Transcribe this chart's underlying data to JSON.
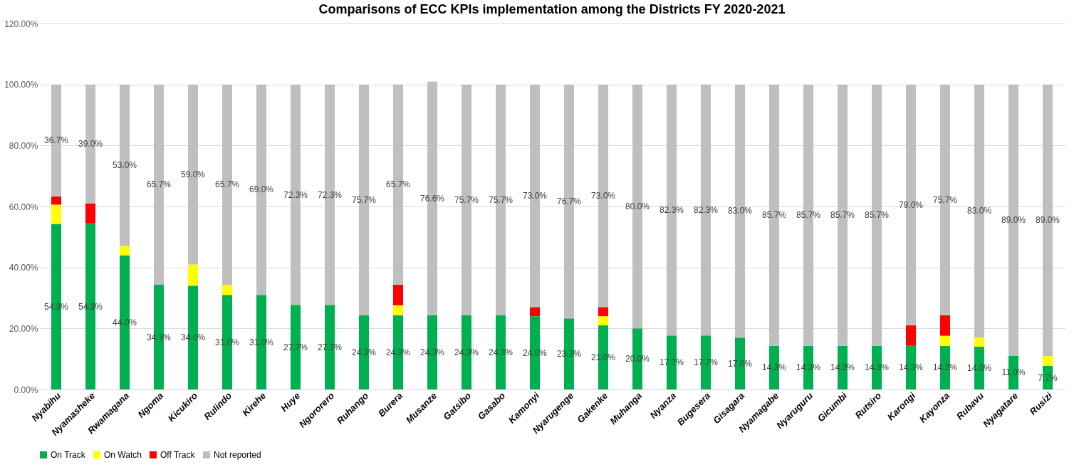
{
  "chart_data": {
    "type": "bar",
    "title": "Comparisons  of ECC KPIs implementation among the Districts FY 2020-2021",
    "categories": [
      "Nyabihu",
      "Nyamasheke",
      "Rwamagana",
      "Ngoma",
      "Kicukiro",
      "Rulindo",
      "Kirehe",
      "Huye",
      "Ngororero",
      "Ruhango",
      "Burera",
      "Musanze",
      "Gatsibo",
      "Gasabo",
      "Kamonyi",
      "Nyarugenge",
      "Gakenke",
      "Muhanga",
      "Nyanza",
      "Bugesera",
      "Gisagara",
      "Nyamagabe",
      "Nyaruguru",
      "Gicumbi",
      "Rutsiro",
      "Karongi",
      "Kayonza",
      "Rubavu",
      "Nyagatare",
      "Rusizi"
    ],
    "stacked": true,
    "series": [
      {
        "name": "On Track",
        "color": "#00b050",
        "values": [
          54.3,
          54.3,
          44.0,
          34.3,
          34.0,
          31.0,
          31.0,
          27.7,
          27.7,
          24.3,
          24.3,
          24.3,
          24.3,
          24.3,
          24.0,
          23.3,
          21.0,
          20.0,
          17.7,
          17.7,
          17.0,
          14.3,
          14.3,
          14.3,
          14.3,
          14.3,
          14.3,
          14.0,
          11.0,
          7.7
        ],
        "value_labels": [
          "54.3%",
          "54.3%",
          "44.0%",
          "34.3%",
          "34.0%",
          "31.0%",
          "31.0%",
          "27.7%",
          "27.7%",
          "24.3%",
          "24.3%",
          "24.3%",
          "24.3%",
          "24.3%",
          "24.0%",
          "23.3%",
          "21.0%",
          "20.0%",
          "17.7%",
          "17.7%",
          "17.0%",
          "14.3%",
          "14.3%",
          "14.3%",
          "14.3%",
          "14.3%",
          "14.3%",
          "14.0%",
          "11.0%",
          "7.7%"
        ]
      },
      {
        "name": "On Watch",
        "color": "#ffff00",
        "values": [
          6.3,
          null,
          3.0,
          null,
          7.0,
          3.3,
          null,
          null,
          null,
          null,
          3.3,
          null,
          null,
          null,
          null,
          null,
          3.0,
          null,
          null,
          null,
          null,
          null,
          null,
          null,
          null,
          null,
          3.3,
          3.0,
          null,
          3.3
        ]
      },
      {
        "name": "Off Track",
        "color": "#ff0000",
        "values": [
          2.7,
          6.7,
          null,
          null,
          null,
          null,
          null,
          null,
          null,
          null,
          6.7,
          null,
          null,
          null,
          3.0,
          null,
          3.0,
          null,
          null,
          null,
          null,
          null,
          null,
          null,
          null,
          6.7,
          6.7,
          null,
          null,
          null
        ]
      },
      {
        "name": "Not reported",
        "color": "#bfbfbf",
        "values": [
          36.7,
          39.0,
          53.0,
          65.7,
          59.0,
          65.7,
          69.0,
          72.3,
          72.3,
          75.7,
          65.7,
          76.6,
          75.7,
          75.7,
          73.0,
          76.7,
          73.0,
          80.0,
          82.3,
          82.3,
          83.0,
          85.7,
          85.7,
          85.7,
          85.7,
          79.0,
          75.7,
          83.0,
          89.0,
          89.0
        ],
        "value_labels": [
          "36.7%",
          "39.0%",
          "53.0%",
          "65.7%",
          "59.0%",
          "65.7%",
          "69.0%",
          "72.3%",
          "72.3%",
          "75.7%",
          "65.7%",
          "76.6%",
          "75.7%",
          "75.7%",
          "73.0%",
          "76.7%",
          "73.0%",
          "80.0%",
          "82.3%",
          "82.3%",
          "83.0%",
          "85.7%",
          "85.7%",
          "85.7%",
          "85.7%",
          "79.0%",
          "75.7%",
          "83.0%",
          "89.0%",
          "89.0%"
        ]
      }
    ],
    "ylim": [
      0,
      120
    ],
    "yticks": [
      {
        "value": 0,
        "label": "0.00%"
      },
      {
        "value": 20,
        "label": "20.00%"
      },
      {
        "value": 40,
        "label": "40.00%"
      },
      {
        "value": 60,
        "label": "60.00%"
      },
      {
        "value": 80,
        "label": "80.00%"
      },
      {
        "value": 100,
        "label": "100.00%"
      },
      {
        "value": 120,
        "label": "120.00%"
      }
    ],
    "grid": "y",
    "legend": "bottom"
  }
}
